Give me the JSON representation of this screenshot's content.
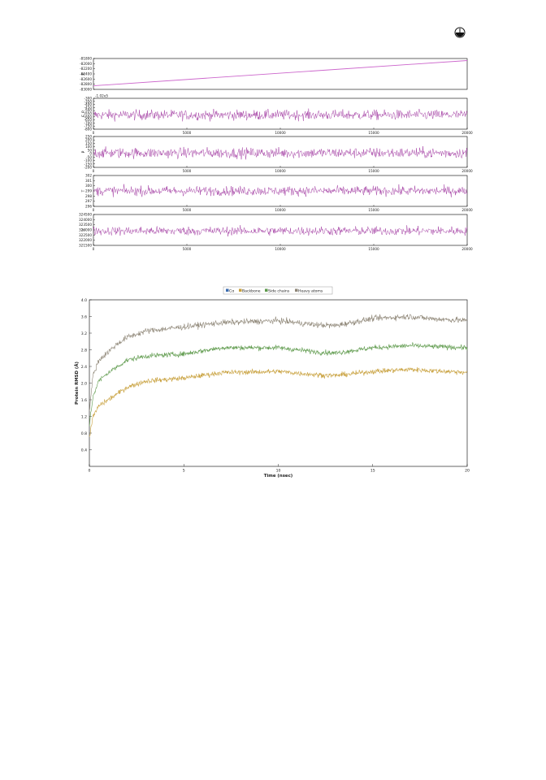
{
  "logo": {
    "icon": "journal-logo-icon"
  },
  "colors": {
    "energy_trace": "#cc66cc",
    "trace": "#9c2f9c",
    "ca": "#3c6db0",
    "backbone": "#c8a03c",
    "side_chains": "#5e9a4c",
    "heavy_atoms": "#8f8778",
    "axis": "#000000",
    "grid": "#bbbbbb"
  },
  "chart_data": [
    {
      "type": "line",
      "panel": "energy",
      "ylabel": "E",
      "xlim": [
        0,
        20000
      ],
      "ylim": [
        -83000,
        -81800
      ],
      "yticks": [
        "-81800",
        "-82000",
        "-82200",
        "-82400",
        "-82600",
        "-82800",
        "-83000"
      ],
      "xticks": [],
      "series": [
        {
          "x": [
            0,
            20000
          ],
          "values": [
            -82860,
            -81880
          ]
        }
      ]
    },
    {
      "type": "line",
      "panel": "potential-energy",
      "ylabel": "E_P",
      "offset_label": "-1.02e5",
      "xlim": [
        0,
        20000
      ],
      "ylim": [
        -800,
        -300
      ],
      "yticks": [
        "-300",
        "-350",
        "-400",
        "-450",
        "-500",
        "-550",
        "-600",
        "-650",
        "-700",
        "-750",
        "-800"
      ],
      "xticks": [
        "0",
        "5000",
        "10000",
        "15000",
        "20000"
      ],
      "series": [
        {
          "mean": -570,
          "noise": 80
        }
      ]
    },
    {
      "type": "line",
      "panel": "pressure",
      "ylabel": "P",
      "xlim": [
        0,
        20000
      ],
      "ylim": [
        -200,
        250
      ],
      "yticks": [
        "250",
        "200",
        "150",
        "100",
        "50",
        "0",
        "-50",
        "-100",
        "-150",
        "-200"
      ],
      "xticks": [
        "0",
        "5000",
        "10000",
        "15000",
        "20000"
      ],
      "series": [
        {
          "mean": 10,
          "noise": 75
        }
      ]
    },
    {
      "type": "line",
      "panel": "temperature",
      "ylabel": "T",
      "xlim": [
        0,
        20000
      ],
      "ylim": [
        296,
        302
      ],
      "yticks": [
        "302",
        "301",
        "300",
        "299",
        "298",
        "297",
        "296"
      ],
      "xticks": [
        "0",
        "5000",
        "10000",
        "15000",
        "20000"
      ],
      "series": [
        {
          "mean": 299,
          "noise": 0.9
        }
      ]
    },
    {
      "type": "line",
      "panel": "volume",
      "ylabel": "V",
      "xlim": [
        0,
        20000
      ],
      "ylim": [
        321500,
        324500
      ],
      "yticks": [
        "324500",
        "324000",
        "323500",
        "323000",
        "322500",
        "322000",
        "321500"
      ],
      "xticks": [
        "0",
        "5000",
        "10000",
        "15000",
        "20000"
      ],
      "series": [
        {
          "mean": 322900,
          "noise": 420
        }
      ]
    },
    {
      "type": "line",
      "panel": "rmsd",
      "xlabel": "Time (nsec)",
      "ylabel": "Protein RMSD (Å)",
      "xlim": [
        0,
        20
      ],
      "ylim": [
        0,
        4.0
      ],
      "xticks": [
        "0",
        "5",
        "10",
        "15",
        "20"
      ],
      "yticks": [
        "0.4",
        "0.8",
        "1.2",
        "1.6",
        "2.0",
        "2.4",
        "2.8",
        "3.2",
        "3.6",
        "4.0"
      ],
      "legend_position": "top",
      "legend": [
        "Cα",
        "Backbone",
        "Side chains",
        "Heavy atoms"
      ],
      "series": [
        {
          "name": "Cα",
          "x": [
            0,
            0.2,
            0.5,
            1,
            1.5,
            2,
            3,
            5,
            7,
            10,
            12,
            13,
            15,
            17,
            18,
            20
          ],
          "values": [
            0.6,
            0.95,
            1.05,
            1.15,
            1.3,
            1.5,
            1.8,
            1.95,
            2.1,
            2.15,
            2.1,
            2.05,
            2.15,
            2.2,
            2.2,
            2.2
          ]
        },
        {
          "name": "Backbone",
          "x": [
            0,
            0.2,
            0.5,
            1,
            1.5,
            2,
            3,
            5,
            7,
            10,
            12,
            13,
            15,
            17,
            18,
            20
          ],
          "values": [
            0.7,
            1.2,
            1.45,
            1.6,
            1.75,
            1.9,
            2.05,
            2.12,
            2.25,
            2.28,
            2.2,
            2.18,
            2.28,
            2.33,
            2.3,
            2.26
          ]
        },
        {
          "name": "Side chains",
          "x": [
            0,
            0.2,
            0.5,
            1,
            1.5,
            2,
            3,
            5,
            7,
            10,
            12,
            13,
            15,
            17,
            18,
            20
          ],
          "values": [
            1.0,
            1.7,
            2.05,
            2.25,
            2.4,
            2.55,
            2.65,
            2.7,
            2.85,
            2.85,
            2.75,
            2.72,
            2.85,
            2.9,
            2.88,
            2.85
          ]
        },
        {
          "name": "Heavy atoms",
          "x": [
            0,
            0.2,
            0.5,
            1,
            1.5,
            2,
            3,
            5,
            7,
            10,
            12,
            13,
            15,
            17,
            18,
            20
          ],
          "values": [
            1.35,
            2.2,
            2.55,
            2.75,
            2.95,
            3.1,
            3.25,
            3.35,
            3.45,
            3.5,
            3.4,
            3.38,
            3.55,
            3.6,
            3.55,
            3.5
          ]
        }
      ]
    }
  ]
}
